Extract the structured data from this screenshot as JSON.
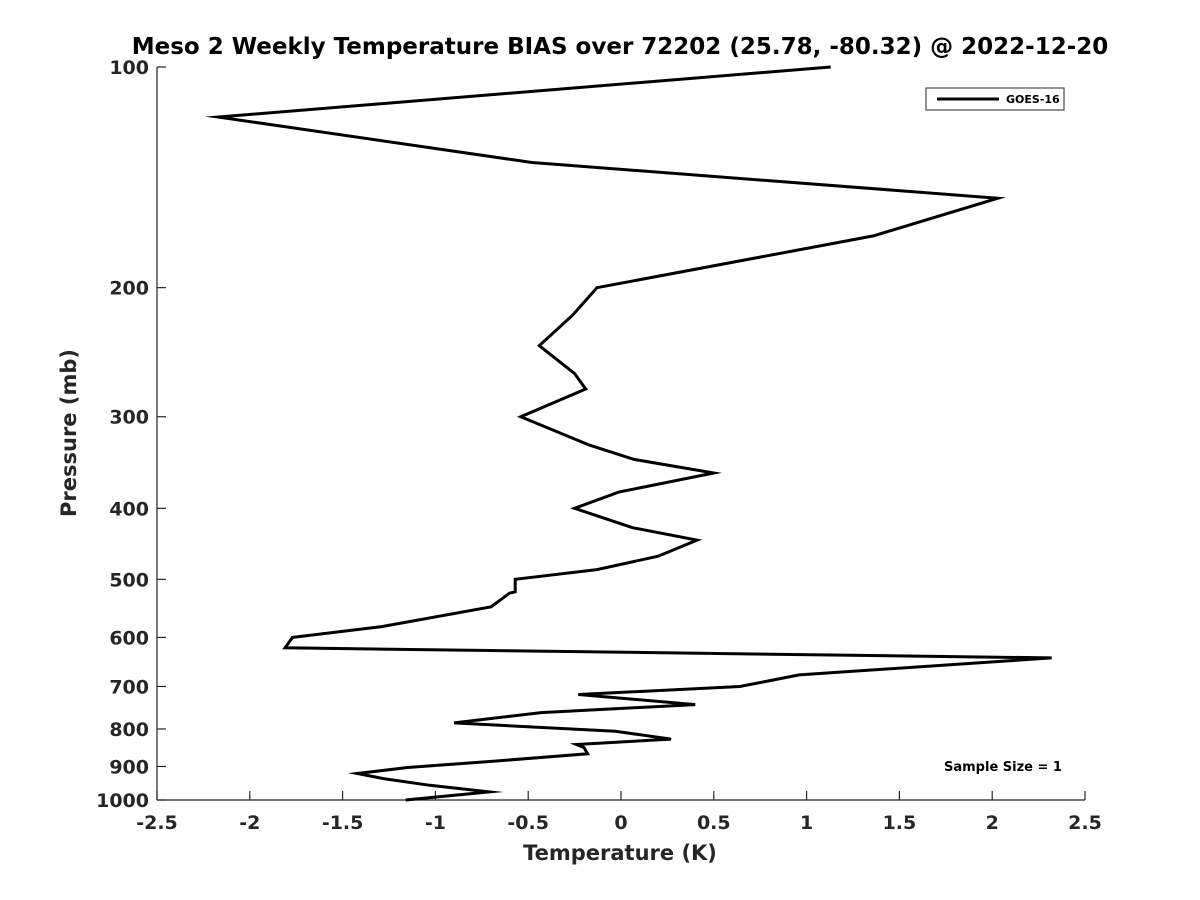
{
  "chart_data": {
    "type": "line",
    "title": "Meso 2 Weekly Temperature BIAS over 72202 (25.78, -80.32) @ 2022-12-20",
    "xlabel": "Temperature (K)",
    "ylabel": "Pressure (mb)",
    "xlim": [
      -2.5,
      2.5
    ],
    "ylim": [
      100,
      1000
    ],
    "y_scale": "log",
    "y_reversed": true,
    "grid": false,
    "x_ticks": [
      -2.5,
      -2,
      -1.5,
      -1,
      -0.5,
      0,
      0.5,
      1,
      1.5,
      2,
      2.5
    ],
    "x_tick_labels": [
      "-2.5",
      "-2",
      "-1.5",
      "-1",
      "-0.5",
      "0",
      "0.5",
      "1",
      "1.5",
      "2",
      "2.5"
    ],
    "y_ticks": [
      100,
      200,
      300,
      400,
      500,
      600,
      700,
      800,
      900,
      1000
    ],
    "y_tick_labels": [
      "100",
      "200",
      "300",
      "400",
      "500",
      "600",
      "700",
      "800",
      "900",
      "1000"
    ],
    "legend": {
      "position": "top-right",
      "entries": [
        "GOES-16"
      ]
    },
    "annotation": "Sample Size = 1",
    "series": [
      {
        "name": "GOES-16",
        "color": "#000000",
        "x": [
          1.13,
          -2.17,
          -0.48,
          2.03,
          1.36,
          -0.13,
          -0.26,
          -0.44,
          -0.25,
          -0.19,
          -0.54,
          -0.17,
          0.07,
          0.5,
          -0.01,
          -0.25,
          0.06,
          0.41,
          0.2,
          -0.13,
          -0.57,
          -0.57,
          -0.6,
          -0.7,
          -1.29,
          -1.77,
          -1.81,
          2.32,
          0.96,
          0.64,
          -0.23,
          0.4,
          -0.43,
          -0.9,
          -0.03,
          0.27,
          -0.24,
          -0.2,
          -0.18,
          -0.68,
          -1.15,
          -1.42,
          -1.28,
          -1.03,
          -0.71,
          -1.16
        ],
        "y": [
          100,
          117,
          135,
          151,
          170,
          200,
          218,
          240,
          262,
          275,
          300,
          328,
          343,
          358,
          380,
          400,
          425,
          442,
          465,
          485,
          500,
          520,
          522,
          545,
          580,
          600,
          620,
          640,
          675,
          700,
          718,
          741,
          760,
          785,
          806,
          826,
          840,
          848,
          865,
          885,
          903,
          920,
          935,
          955,
          975,
          1000
        ]
      }
    ]
  }
}
